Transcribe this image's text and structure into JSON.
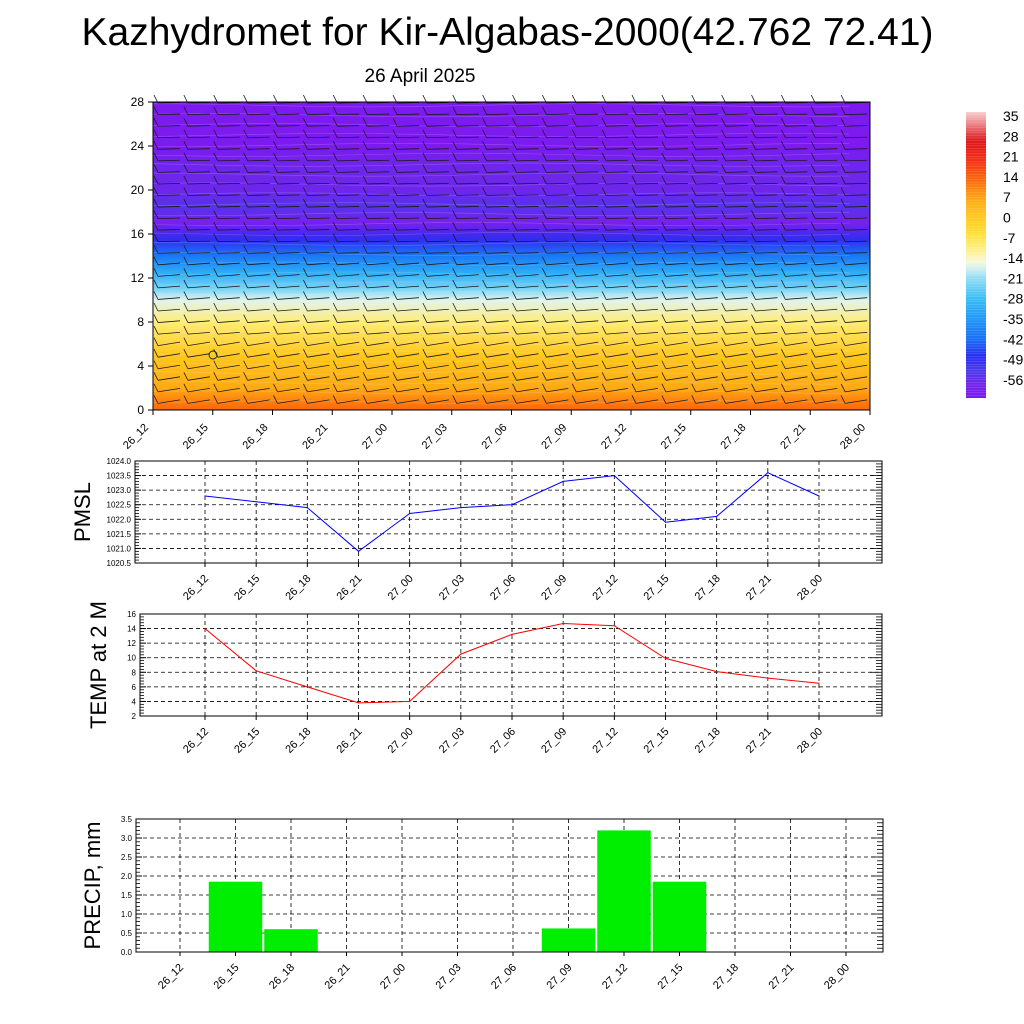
{
  "title": "Kazhydromet for Kir-Algabas-2000(42.762 72.41)",
  "subtitle": "26 April 2025",
  "chart_data": [
    {
      "type": "heatmap",
      "panel": "cross-section",
      "x_ticks": [
        "26_12",
        "26_15",
        "26_18",
        "26_21",
        "27_00",
        "27_03",
        "27_06",
        "27_09",
        "27_12",
        "27_15",
        "27_18",
        "27_21",
        "28_00"
      ],
      "y_ticks": [
        "0",
        "4",
        "8",
        "12",
        "16",
        "20",
        "24",
        "28"
      ],
      "ylim": [
        0,
        28
      ],
      "colorbar": {
        "labels": [
          "35",
          "28",
          "21",
          "14",
          "7",
          "0",
          "-7",
          "-14",
          "-21",
          "-28",
          "-35",
          "-42",
          "-49",
          "-56"
        ],
        "range": [
          -60,
          38
        ]
      },
      "layers": [
        {
          "level": 0,
          "value": 15
        },
        {
          "level": 2,
          "value": 8
        },
        {
          "level": 5,
          "value": 2
        },
        {
          "level": 8,
          "value": -8
        },
        {
          "level": 10,
          "value": -15
        },
        {
          "level": 11,
          "value": -21
        },
        {
          "level": 12.5,
          "value": -29
        },
        {
          "level": 14,
          "value": -38
        },
        {
          "level": 15.5,
          "value": -47
        },
        {
          "level": 17,
          "value": -57
        },
        {
          "level": 18.5,
          "value": -52
        },
        {
          "level": 20,
          "value": -55
        },
        {
          "level": 22,
          "value": -55
        },
        {
          "level": 24,
          "value": -60
        },
        {
          "level": 28,
          "value": -60
        }
      ]
    },
    {
      "type": "line",
      "panel": "pmsl",
      "ylabel": "PMSL",
      "categories": [
        "26_12",
        "26_15",
        "26_18",
        "26_21",
        "27_00",
        "27_03",
        "27_06",
        "27_09",
        "27_12",
        "27_15",
        "27_18",
        "27_21",
        "28_00"
      ],
      "values": [
        1022.8,
        1022.6,
        1022.4,
        1020.9,
        1022.2,
        1022.4,
        1022.5,
        1023.3,
        1023.5,
        1021.9,
        1022.1,
        1023.6,
        1022.8
      ],
      "ylim": [
        1020.5,
        1024.0
      ],
      "y_ticks": [
        "1020.5",
        "1021.0",
        "1021.5",
        "1022.0",
        "1022.5",
        "1023.0",
        "1023.5",
        "1024.0"
      ],
      "color": "#0000ff",
      "grid": true
    },
    {
      "type": "line",
      "panel": "temp",
      "ylabel": "TEMP at 2 M",
      "categories": [
        "26_12",
        "26_15",
        "26_18",
        "26_21",
        "27_00",
        "27_03",
        "27_06",
        "27_09",
        "27_12",
        "27_15",
        "27_18",
        "27_21",
        "28_00"
      ],
      "values": [
        14.0,
        8.2,
        6.0,
        3.8,
        4.0,
        10.5,
        13.2,
        14.7,
        14.4,
        9.9,
        8.1,
        7.2,
        6.5
      ],
      "ylim": [
        2,
        16
      ],
      "y_ticks": [
        "2",
        "4",
        "6",
        "8",
        "10",
        "12",
        "14",
        "16"
      ],
      "color": "#ff0000",
      "grid": true
    },
    {
      "type": "bar",
      "panel": "precip",
      "ylabel": "PRECIP, mm",
      "categories": [
        "26_12",
        "26_15",
        "26_18",
        "26_21",
        "27_00",
        "27_03",
        "27_06",
        "27_09",
        "27_12",
        "27_15",
        "27_18",
        "27_21",
        "28_00"
      ],
      "values": [
        0,
        1.85,
        0.6,
        0,
        0,
        0,
        0,
        0.62,
        3.2,
        1.85,
        0,
        0,
        0
      ],
      "ylim": [
        0,
        3.5
      ],
      "y_ticks": [
        "0.0",
        "0.5",
        "1.0",
        "1.5",
        "2.0",
        "2.5",
        "3.0",
        "3.5"
      ],
      "color": "#00ee00",
      "grid": true
    }
  ]
}
